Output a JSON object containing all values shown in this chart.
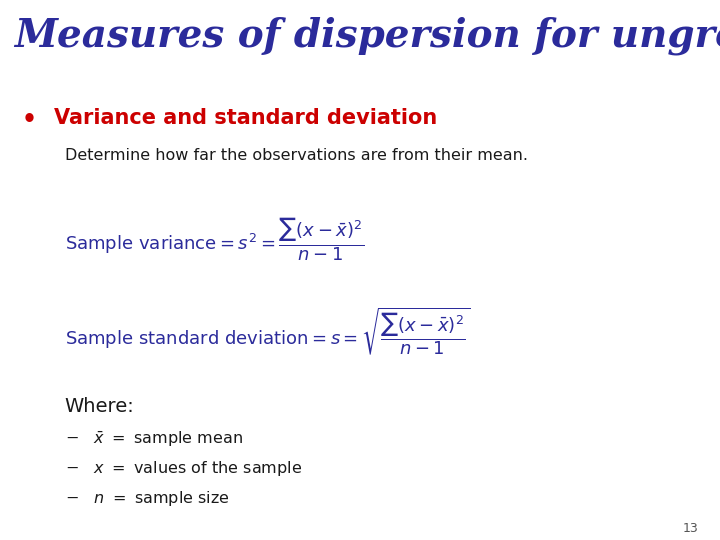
{
  "title": "Measures of dispersion for ungrouped data",
  "title_color": "#2B2B9B",
  "title_fontsize": 28,
  "bullet_heading": "Variance and standard deviation",
  "bullet_color": "#CC0000",
  "bullet_fontsize": 15,
  "subtext": "Determine how far the observations are from their mean.",
  "subtext_color": "#1a1a1a",
  "subtext_fontsize": 11.5,
  "formula_color": "#2B2B9B",
  "formula_fontsize": 13,
  "where_fontsize": 14,
  "where_color": "#1a1a1a",
  "body_text_fontsize": 11.5,
  "body_text_color": "#1a1a1a",
  "page_number": "13",
  "background_color": "#FFFFFF"
}
